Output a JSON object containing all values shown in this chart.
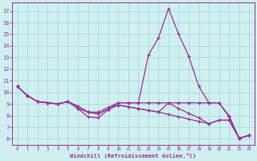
{
  "xlabel": "Windchill (Refroidissement éolien,°C)",
  "bg_color": "#d0f0f0",
  "grid_color": "#aad8d8",
  "line_color": "#993399",
  "x": [
    0,
    1,
    2,
    3,
    4,
    5,
    6,
    7,
    8,
    9,
    10,
    11,
    12,
    13,
    14,
    15,
    16,
    17,
    18,
    19,
    20,
    21,
    22,
    23
  ],
  "line1": [
    10.5,
    9.7,
    9.2,
    9.1,
    9.0,
    9.2,
    8.6,
    7.9,
    7.8,
    8.5,
    9.1,
    9.1,
    9.1,
    13.2,
    14.7,
    17.2,
    15.0,
    13.1,
    10.5,
    9.1,
    9.1,
    7.9,
    6.05,
    6.3
  ],
  "line2": [
    10.5,
    9.7,
    9.2,
    9.1,
    9.0,
    9.2,
    8.6,
    8.3,
    8.3,
    8.7,
    9.1,
    9.1,
    9.1,
    9.1,
    9.1,
    9.1,
    9.1,
    9.1,
    9.1,
    9.1,
    9.1,
    8.0,
    6.05,
    6.3
  ],
  "line3": [
    10.5,
    9.7,
    9.2,
    9.1,
    9.0,
    9.2,
    8.8,
    8.3,
    8.15,
    8.55,
    8.9,
    8.75,
    8.6,
    8.45,
    8.3,
    8.1,
    7.9,
    7.7,
    7.5,
    7.3,
    7.6,
    7.6,
    6.05,
    6.3
  ],
  "line4": [
    10.5,
    9.7,
    9.2,
    9.1,
    9.0,
    9.2,
    8.8,
    8.3,
    8.15,
    8.55,
    8.9,
    8.75,
    8.6,
    8.45,
    8.3,
    9.1,
    8.6,
    8.2,
    7.8,
    7.3,
    7.6,
    7.6,
    6.05,
    6.3
  ],
  "ylim": [
    5.5,
    17.7
  ],
  "yticks": [
    6,
    7,
    8,
    9,
    10,
    11,
    12,
    13,
    14,
    15,
    16,
    17
  ],
  "xlim": [
    -0.5,
    23.5
  ],
  "xticks": [
    0,
    1,
    2,
    3,
    4,
    5,
    6,
    7,
    8,
    9,
    10,
    11,
    12,
    13,
    14,
    15,
    16,
    17,
    18,
    19,
    20,
    21,
    22,
    23
  ],
  "xtick_labels": [
    "0",
    "1",
    "2",
    "3",
    "4",
    "5",
    "6",
    "7",
    "8",
    "9",
    "10",
    "11",
    "12",
    "13",
    "14",
    "15",
    "16",
    "17",
    "18",
    "19",
    "20",
    "21",
    "22",
    "23"
  ]
}
